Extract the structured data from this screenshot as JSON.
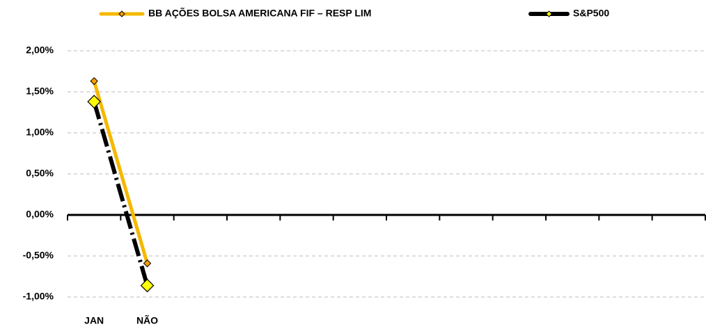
{
  "chart_data": {
    "type": "line",
    "categories": [
      "JAN",
      "NÃO",
      null,
      null,
      null,
      null,
      null,
      null,
      null,
      null,
      null,
      null
    ],
    "series": [
      {
        "name": "BB AÇÕES BOLSA AMERICANA FIF – RESP LIM",
        "color": "#f5b800",
        "values": [
          1.63,
          -0.59,
          null,
          null,
          null,
          null,
          null,
          null,
          null,
          null,
          null,
          null
        ]
      },
      {
        "name": "S&P500",
        "color": "#000000",
        "values": [
          1.38,
          -0.86,
          null,
          null,
          null,
          null,
          null,
          null,
          null,
          null,
          null,
          null
        ]
      }
    ],
    "ylim": [
      -1,
      2
    ],
    "yticks": [
      {
        "value": -1,
        "label": "-1,00%"
      },
      {
        "value": -0.5,
        "label": "-0,50%"
      },
      {
        "value": 0,
        "label": "0,00%"
      },
      {
        "value": 0.5,
        "label": "0,50%"
      },
      {
        "value": 1,
        "label": "1,00%"
      },
      {
        "value": 1.5,
        "label": "1,50%"
      },
      {
        "value": 2,
        "label": "2,00%"
      }
    ],
    "grid": true,
    "legend": "top"
  }
}
